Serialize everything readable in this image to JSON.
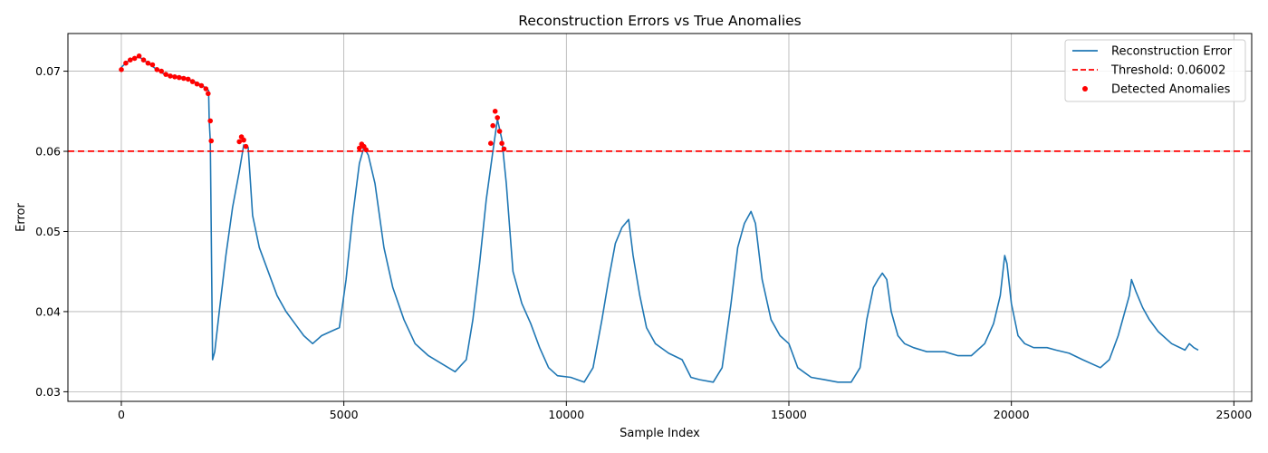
{
  "chart_data": {
    "type": "line",
    "title": "Reconstruction Errors vs True Anomalies",
    "xlabel": "Sample Index",
    "ylabel": "Error",
    "xlim": [
      -1200,
      25400
    ],
    "ylim": [
      0.0288,
      0.0747
    ],
    "xticks": [
      0,
      5000,
      10000,
      15000,
      20000,
      25000
    ],
    "xtick_labels": [
      "0",
      "5000",
      "10000",
      "15000",
      "20000",
      "25000"
    ],
    "yticks": [
      0.03,
      0.04,
      0.05,
      0.06,
      0.07
    ],
    "ytick_labels": [
      "0.03",
      "0.04",
      "0.05",
      "0.06",
      "0.07"
    ],
    "grid": true,
    "legend_position": "top-right",
    "colors": {
      "line": "#1f77b4",
      "threshold": "#ff0000",
      "anomalies": "#ff0000"
    },
    "series": [
      {
        "name": "Reconstruction Error",
        "kind": "line",
        "x": [
          0,
          200,
          400,
          600,
          800,
          1000,
          1200,
          1400,
          1600,
          1800,
          1960,
          1975,
          2000,
          2050,
          2100,
          2200,
          2350,
          2500,
          2650,
          2750,
          2850,
          2950,
          3100,
          3300,
          3500,
          3700,
          3900,
          4100,
          4300,
          4500,
          4700,
          4900,
          5050,
          5200,
          5350,
          5450,
          5550,
          5700,
          5900,
          6100,
          6350,
          6600,
          6900,
          7200,
          7500,
          7750,
          7900,
          8050,
          8200,
          8350,
          8450,
          8550,
          8650,
          8800,
          9000,
          9200,
          9400,
          9600,
          9800,
          10100,
          10400,
          10600,
          10800,
          10950,
          11100,
          11250,
          11400,
          11500,
          11650,
          11800,
          12000,
          12300,
          12600,
          12800,
          13000,
          13300,
          13500,
          13700,
          13850,
          14000,
          14150,
          14250,
          14400,
          14600,
          14800,
          15000,
          15200,
          15500,
          15800,
          16100,
          16400,
          16600,
          16750,
          16900,
          17000,
          17100,
          17200,
          17300,
          17450,
          17600,
          17800,
          18100,
          18500,
          18800,
          19100,
          19400,
          19600,
          19750,
          19850,
          19900,
          20000,
          20150,
          20300,
          20500,
          20800,
          21000,
          21300,
          21600,
          22000,
          22200,
          22400,
          22550,
          22650,
          22700,
          22800,
          22950,
          23100,
          23300,
          23600,
          23900,
          24000,
          24100,
          24200
        ],
        "values": [
          0.0705,
          0.0715,
          0.0718,
          0.071,
          0.0702,
          0.0695,
          0.0694,
          0.0692,
          0.0688,
          0.0683,
          0.0676,
          0.0638,
          0.0613,
          0.034,
          0.035,
          0.04,
          0.047,
          0.053,
          0.0575,
          0.0608,
          0.0605,
          0.052,
          0.048,
          0.045,
          0.042,
          0.04,
          0.0385,
          0.037,
          0.036,
          0.037,
          0.0375,
          0.038,
          0.044,
          0.052,
          0.0585,
          0.0605,
          0.0595,
          0.056,
          0.048,
          0.043,
          0.039,
          0.036,
          0.0345,
          0.0335,
          0.0325,
          0.034,
          0.039,
          0.046,
          0.054,
          0.06,
          0.064,
          0.0615,
          0.056,
          0.045,
          0.041,
          0.0385,
          0.0355,
          0.033,
          0.032,
          0.0318,
          0.0312,
          0.033,
          0.039,
          0.044,
          0.0485,
          0.0505,
          0.0515,
          0.047,
          0.042,
          0.038,
          0.036,
          0.0348,
          0.034,
          0.0318,
          0.0315,
          0.0312,
          0.033,
          0.041,
          0.048,
          0.051,
          0.0525,
          0.051,
          0.044,
          0.039,
          0.037,
          0.036,
          0.033,
          0.0318,
          0.0315,
          0.0312,
          0.0312,
          0.033,
          0.039,
          0.043,
          0.044,
          0.0448,
          0.044,
          0.04,
          0.037,
          0.036,
          0.0355,
          0.035,
          0.035,
          0.0345,
          0.0345,
          0.036,
          0.0385,
          0.042,
          0.047,
          0.046,
          0.041,
          0.037,
          0.036,
          0.0355,
          0.0355,
          0.0352,
          0.0348,
          0.034,
          0.033,
          0.034,
          0.037,
          0.04,
          0.042,
          0.044,
          0.0425,
          0.0405,
          0.039,
          0.0375,
          0.036,
          0.0352,
          0.036,
          0.0355,
          0.0352
        ]
      },
      {
        "name": "Threshold: 0.06002",
        "kind": "hline",
        "y": 0.06002
      },
      {
        "name": "Detected Anomalies",
        "kind": "scatter",
        "x": [
          0,
          100,
          200,
          300,
          400,
          500,
          600,
          700,
          800,
          900,
          1000,
          1100,
          1200,
          1300,
          1400,
          1500,
          1600,
          1700,
          1800,
          1900,
          1950,
          2000,
          2020,
          2650,
          2700,
          2750,
          2800,
          5350,
          5400,
          5450,
          5500,
          8300,
          8350,
          8400,
          8450,
          8500,
          8550,
          8600
        ],
        "values": [
          0.0702,
          0.071,
          0.0714,
          0.0716,
          0.0719,
          0.0714,
          0.071,
          0.0708,
          0.0702,
          0.07,
          0.0696,
          0.0694,
          0.0693,
          0.0692,
          0.0691,
          0.069,
          0.0687,
          0.0684,
          0.0682,
          0.0678,
          0.0672,
          0.0638,
          0.0613,
          0.0612,
          0.0618,
          0.0614,
          0.0606,
          0.0604,
          0.0609,
          0.0606,
          0.0602,
          0.061,
          0.0632,
          0.065,
          0.0642,
          0.0625,
          0.061,
          0.0603
        ]
      }
    ]
  }
}
